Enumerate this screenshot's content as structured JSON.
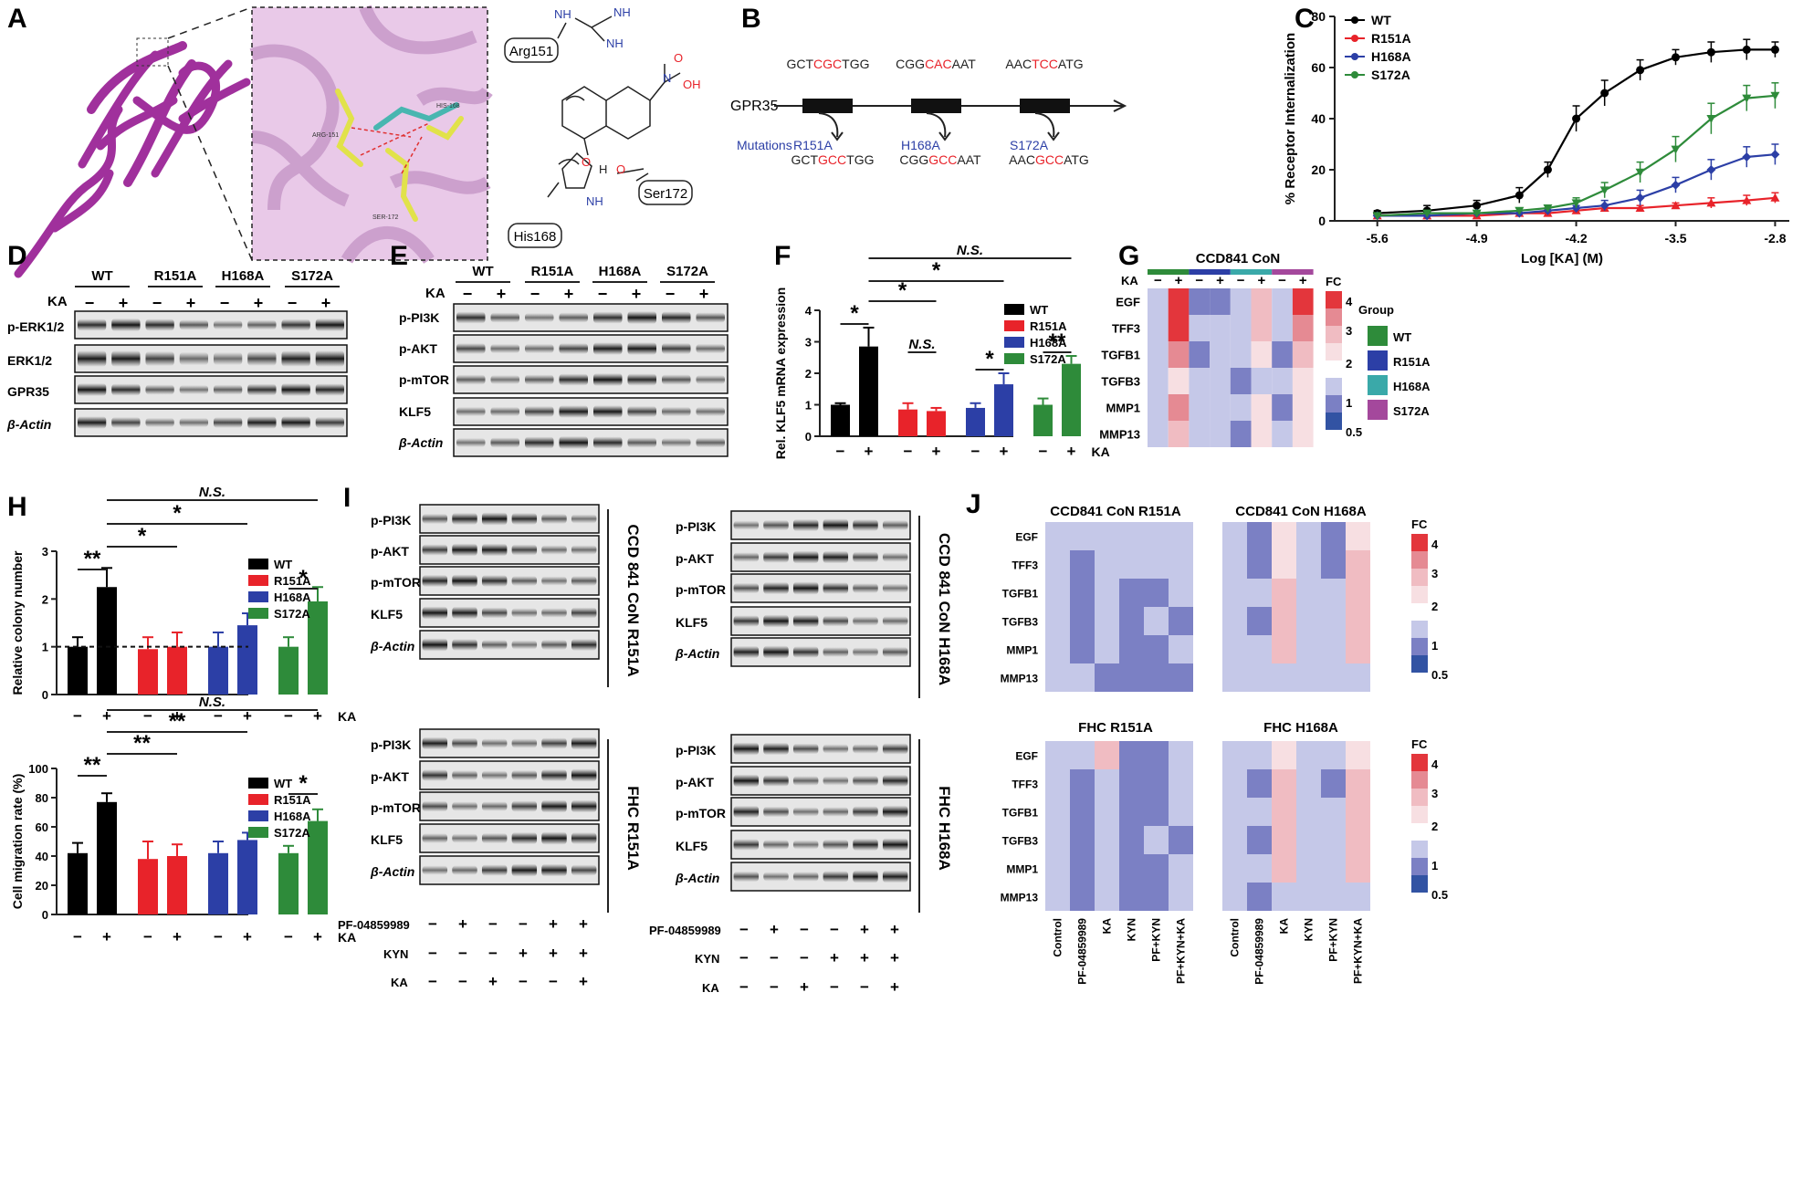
{
  "panels": {
    "A": {
      "letter": "A",
      "residues": [
        "ARG-151",
        "HIS-168",
        "SER-172"
      ],
      "chem_boxes": [
        "Arg151",
        "His168",
        "Ser172"
      ],
      "atoms": {
        "n": "N",
        "nh": "NH",
        "nh2": "NH",
        "o": "O",
        "oh": "OH",
        "h": "H"
      }
    },
    "B": {
      "letter": "B",
      "gene": "GPR35",
      "mutations_label": "Mutations",
      "wt_codons": [
        {
          "pre": "GCT",
          "mid": "CGC",
          "post": "TGG"
        },
        {
          "pre": "CGG",
          "mid": "CAC",
          "post": "AAT"
        },
        {
          "pre": "AAC",
          "mid": "TCC",
          "post": "ATG"
        }
      ],
      "mut_codons": [
        {
          "pre": "GCT",
          "mid": "GCC",
          "post": "TGG"
        },
        {
          "pre": "CGG",
          "mid": "GCC",
          "post": "AAT"
        },
        {
          "pre": "AAC",
          "mid": "GCC",
          "post": "ATG"
        }
      ],
      "mut_names": [
        "R151A",
        "H168A",
        "S172A"
      ]
    },
    "C": {
      "letter": "C"
    },
    "D": {
      "letter": "D",
      "groups": [
        "WT",
        "R151A",
        "H168A",
        "S172A"
      ],
      "ka_label": "KA",
      "rows": [
        "p-ERK1/2",
        "ERK1/2",
        "GPR35",
        "β-Actin"
      ]
    },
    "E": {
      "letter": "E",
      "groups": [
        "WT",
        "R151A",
        "H168A",
        "S172A"
      ],
      "ka_label": "KA",
      "rows": [
        "p-PI3K",
        "p-AKT",
        "p-mTOR",
        "KLF5",
        "β-Actin"
      ]
    },
    "F": {
      "letter": "F"
    },
    "G": {
      "letter": "G"
    },
    "H": {
      "letter": "H"
    },
    "I": {
      "letter": "I",
      "rows": [
        "p-PI3K",
        "p-AKT",
        "p-mTOR",
        "KLF5",
        "β-Actin"
      ],
      "side_labels": [
        "CCD 841 CoN R151A",
        "FHC R151A",
        "CCD 841 CoN H168A",
        "FHC H168A"
      ],
      "treat_labels": [
        "PF-04859989",
        "KYN",
        "KA"
      ],
      "treat_signs": [
        [
          "−",
          "+",
          "−",
          "−",
          "+",
          "+"
        ],
        [
          "−",
          "−",
          "−",
          "+",
          "+",
          "+"
        ],
        [
          "−",
          "−",
          "+",
          "−",
          "−",
          "+"
        ]
      ]
    },
    "J": {
      "letter": "J"
    }
  },
  "sig": {
    "ns": "N.S.",
    "one": "*",
    "two": "**"
  },
  "colors": {
    "WT": "#000000",
    "R151A": "#e8232a",
    "H168A": "#2c3fa6",
    "S172A": "#2e8b3a",
    "purple": "#a4489c",
    "teal": "#3aa9a9"
  },
  "chart_data": [
    {
      "panel": "C",
      "type": "line",
      "xlabel": "Log [KA] (M)",
      "ylabel": "% Receptor Internalization",
      "xlim": [
        -5.9,
        -2.7
      ],
      "ylim": [
        0,
        80
      ],
      "xticks": [
        "-5.6",
        "-4.9",
        "-4.2",
        "-3.5",
        "-2.8"
      ],
      "yticks": [
        "0",
        "20",
        "40",
        "60",
        "80"
      ],
      "x": [
        -5.6,
        -5.25,
        -4.9,
        -4.6,
        -4.4,
        -4.2,
        -4.0,
        -3.75,
        -3.5,
        -3.25,
        -3.0,
        -2.8
      ],
      "legend": "top-left",
      "series": [
        {
          "name": "WT",
          "color": "#000000",
          "values": [
            3,
            4,
            6,
            10,
            20,
            40,
            50,
            59,
            64,
            66,
            67,
            67
          ],
          "err": [
            1,
            2,
            2,
            3,
            3,
            5,
            5,
            4,
            3,
            4,
            4,
            3
          ]
        },
        {
          "name": "R151A",
          "color": "#e8232a",
          "values": [
            2,
            2,
            2,
            3,
            3,
            4,
            5,
            5,
            6,
            7,
            8,
            9
          ],
          "err": [
            1,
            1,
            1,
            1,
            1,
            1,
            1,
            1,
            1,
            2,
            2,
            2
          ]
        },
        {
          "name": "H168A",
          "color": "#2c3fa6",
          "values": [
            2,
            2,
            3,
            3,
            4,
            5,
            6,
            9,
            14,
            20,
            25,
            26
          ],
          "err": [
            1,
            1,
            1,
            1,
            1,
            1,
            2,
            3,
            3,
            4,
            4,
            4
          ]
        },
        {
          "name": "S172A",
          "color": "#2e8b3a",
          "values": [
            2,
            3,
            3,
            4,
            5,
            7,
            12,
            19,
            28,
            40,
            48,
            49
          ],
          "err": [
            1,
            1,
            1,
            1,
            1,
            2,
            3,
            4,
            5,
            6,
            5,
            5
          ]
        }
      ]
    },
    {
      "panel": "F",
      "type": "bar",
      "ylabel": "Rel. KLF5 mRNA expression",
      "ylim": [
        0,
        4
      ],
      "yticks": [
        "0",
        "1",
        "2",
        "3",
        "4"
      ],
      "ka_label": "KA",
      "signs": [
        "−",
        "+",
        "−",
        "+",
        "−",
        "+",
        "−",
        "+"
      ],
      "legend": "right",
      "series": [
        {
          "name": "WT",
          "color": "#000000",
          "values": [
            1.0,
            2.85
          ],
          "err": [
            0.05,
            0.6
          ]
        },
        {
          "name": "R151A",
          "color": "#e8232a",
          "values": [
            0.85,
            0.8
          ],
          "err": [
            0.2,
            0.1
          ]
        },
        {
          "name": "H168A",
          "color": "#2c3fa6",
          "values": [
            0.9,
            1.65
          ],
          "err": [
            0.15,
            0.35
          ]
        },
        {
          "name": "S172A",
          "color": "#2e8b3a",
          "values": [
            1.0,
            2.3
          ],
          "err": [
            0.2,
            0.25
          ]
        }
      ]
    },
    {
      "panel": "G",
      "type": "heatmap",
      "title": "CCD841 CoN",
      "ka_label": "KA",
      "col_signs": [
        "−",
        "+",
        "−",
        "+",
        "−",
        "+",
        "−",
        "+"
      ],
      "rows": [
        "EGF",
        "TFF3",
        "TGFB1",
        "TGFB3",
        "MMP1",
        "MMP13"
      ],
      "values": [
        [
          1,
          4.2,
          0.7,
          0.7,
          1,
          2.2,
          1,
          3.5
        ],
        [
          1,
          4.2,
          1,
          1,
          1,
          1.8,
          1,
          2.6
        ],
        [
          1,
          3.0,
          0.7,
          1,
          1,
          1.6,
          0.7,
          2.0
        ],
        [
          1,
          1.6,
          1,
          1,
          0.7,
          1,
          1,
          1.5
        ],
        [
          1,
          2.8,
          1,
          1,
          1,
          1.5,
          0.7,
          1.5
        ],
        [
          1,
          1.8,
          1,
          1,
          0.7,
          1.5,
          1,
          1.4
        ]
      ],
      "legend_title": "FC",
      "scale_ticks": [
        "4",
        "3",
        "2",
        "1",
        "0.5"
      ],
      "group_title": "Group",
      "groups": [
        "WT",
        "R151A",
        "H168A",
        "S172A"
      ]
    },
    {
      "panel": "H-top",
      "type": "bar",
      "ylabel": "Relative colony number",
      "ylim": [
        0,
        3
      ],
      "yticks": [
        "0",
        "1",
        "2",
        "3"
      ],
      "ka_label": "KA",
      "signs": [
        "−",
        "+",
        "−",
        "+",
        "−",
        "+",
        "−",
        "+"
      ],
      "legend": "right",
      "series": [
        {
          "name": "WT",
          "color": "#000000",
          "values": [
            1.0,
            2.25
          ],
          "err": [
            0.2,
            0.4
          ]
        },
        {
          "name": "R151A",
          "color": "#e8232a",
          "values": [
            0.95,
            1.0
          ],
          "err": [
            0.25,
            0.3
          ]
        },
        {
          "name": "H168A",
          "color": "#2c3fa6",
          "values": [
            1.0,
            1.45
          ],
          "err": [
            0.3,
            0.25
          ]
        },
        {
          "name": "S172A",
          "color": "#2e8b3a",
          "values": [
            1.0,
            1.95
          ],
          "err": [
            0.2,
            0.3
          ]
        }
      ]
    },
    {
      "panel": "H-bottom",
      "type": "bar",
      "ylabel": "Cell migration rate (%)",
      "ylim": [
        0,
        100
      ],
      "yticks": [
        "0",
        "20",
        "40",
        "60",
        "80",
        "100"
      ],
      "ka_label": "KA",
      "signs": [
        "−",
        "+",
        "−",
        "+",
        "−",
        "+",
        "−",
        "+"
      ],
      "legend": "right",
      "series": [
        {
          "name": "WT",
          "color": "#000000",
          "values": [
            42,
            77
          ],
          "err": [
            7,
            6
          ]
        },
        {
          "name": "R151A",
          "color": "#e8232a",
          "values": [
            38,
            40
          ],
          "err": [
            12,
            8
          ]
        },
        {
          "name": "H168A",
          "color": "#2c3fa6",
          "values": [
            42,
            51
          ],
          "err": [
            8,
            5
          ]
        },
        {
          "name": "S172A",
          "color": "#2e8b3a",
          "values": [
            42,
            64
          ],
          "err": [
            5,
            8
          ]
        }
      ]
    },
    {
      "panel": "J",
      "type": "heatmap",
      "titles": [
        "CCD841 CoN R151A",
        "CCD841 CoN H168A",
        "FHC R151A",
        "FHC H168A"
      ],
      "rows": [
        "EGF",
        "TFF3",
        "TGFB1",
        "TGFB3",
        "MMP1",
        "MMP13"
      ],
      "cols": [
        "Control",
        "PF-04859989",
        "KA",
        "KYN",
        "PF+KYN",
        "PF+KYN+KA"
      ],
      "legend_title": "FC",
      "scale_ticks": [
        "4",
        "3",
        "2",
        "1",
        "0.5"
      ],
      "matrices": [
        [
          [
            1,
            1,
            1,
            1,
            1,
            1
          ],
          [
            1,
            0.7,
            1,
            1,
            1,
            1
          ],
          [
            1,
            0.7,
            1,
            0.7,
            0.7,
            1
          ],
          [
            1,
            0.7,
            1,
            0.7,
            1,
            0.7
          ],
          [
            1,
            0.7,
            1,
            0.7,
            0.7,
            1
          ],
          [
            1,
            1,
            0.7,
            0.7,
            0.7,
            0.7
          ]
        ],
        [
          [
            1,
            0.7,
            1.6,
            1,
            0.7,
            1.6
          ],
          [
            1,
            0.7,
            1.6,
            1,
            0.7,
            2
          ],
          [
            1,
            1,
            2,
            1,
            1,
            2
          ],
          [
            1,
            0.7,
            2,
            1,
            1,
            2
          ],
          [
            1,
            1,
            2,
            1,
            1,
            2
          ],
          [
            1,
            1,
            1,
            1,
            1,
            1
          ]
        ],
        [
          [
            1,
            1,
            2,
            0.7,
            0.7,
            1
          ],
          [
            1,
            0.7,
            1,
            0.7,
            0.7,
            1
          ],
          [
            1,
            0.7,
            1,
            0.7,
            0.7,
            1
          ],
          [
            1,
            0.7,
            1,
            0.7,
            1,
            0.7
          ],
          [
            1,
            0.7,
            1,
            0.7,
            0.7,
            1
          ],
          [
            1,
            0.7,
            1,
            0.7,
            0.7,
            1
          ]
        ],
        [
          [
            1,
            1,
            1.6,
            1,
            1,
            1.6
          ],
          [
            1,
            0.7,
            2,
            1,
            0.7,
            2
          ],
          [
            1,
            1,
            2,
            1,
            1,
            2
          ],
          [
            1,
            0.7,
            2,
            1,
            1,
            2
          ],
          [
            1,
            1,
            2,
            1,
            1,
            2
          ],
          [
            1,
            0.7,
            1,
            1,
            1,
            1
          ]
        ]
      ]
    }
  ]
}
